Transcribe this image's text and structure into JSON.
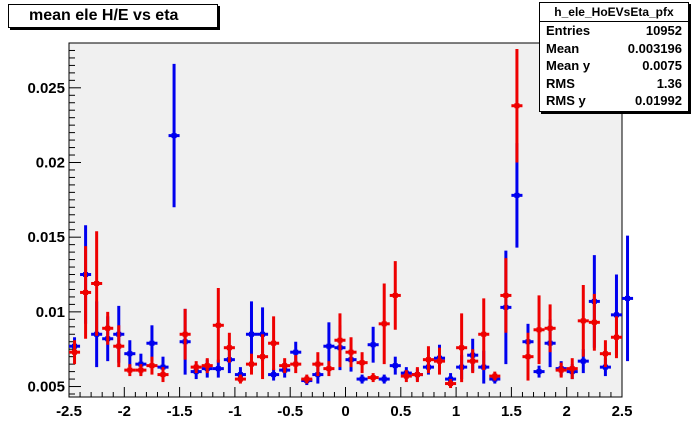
{
  "chart_data": {
    "type": "scatter",
    "title": "mean ele H/E vs eta",
    "xlim": [
      -2.5,
      2.5
    ],
    "ylim": [
      0.0043,
      0.028
    ],
    "x_ticks": [
      "-2.5",
      "-2",
      "-1.5",
      "-1",
      "-0.5",
      "0",
      "0.5",
      "1",
      "1.5",
      "2",
      "2.5"
    ],
    "y_ticks": [
      "0.005",
      "0.01",
      "0.015",
      "0.02",
      "0.025"
    ],
    "grid": false,
    "colors": {
      "blue": "#0000ee",
      "red": "#ee0000"
    },
    "series": [
      {
        "color": "blue",
        "points": [
          {
            "x": -2.45,
            "y": 0.0077,
            "err": 0.0006
          },
          {
            "x": -2.35,
            "y": 0.0125,
            "err": 0.0033
          },
          {
            "x": -2.25,
            "y": 0.0085,
            "err": 0.0022
          },
          {
            "x": -2.15,
            "y": 0.0082,
            "err": 0.0015
          },
          {
            "x": -2.05,
            "y": 0.0085,
            "err": 0.0019
          },
          {
            "x": -1.95,
            "y": 0.0072,
            "err": 0.0009
          },
          {
            "x": -1.85,
            "y": 0.0065,
            "err": 0.0007
          },
          {
            "x": -1.75,
            "y": 0.0079,
            "err": 0.0012
          },
          {
            "x": -1.65,
            "y": 0.0063,
            "err": 0.0007
          },
          {
            "x": -1.55,
            "y": 0.0218,
            "err": 0.0048
          },
          {
            "x": -1.45,
            "y": 0.008,
            "err": 0.0022
          },
          {
            "x": -1.35,
            "y": 0.006,
            "err": 0.0005
          },
          {
            "x": -1.25,
            "y": 0.0062,
            "err": 0.0006
          },
          {
            "x": -1.15,
            "y": 0.0062,
            "err": 0.0006
          },
          {
            "x": -1.05,
            "y": 0.0068,
            "err": 0.0009
          },
          {
            "x": -0.95,
            "y": 0.0058,
            "err": 0.0005
          },
          {
            "x": -0.85,
            "y": 0.0085,
            "err": 0.0022
          },
          {
            "x": -0.75,
            "y": 0.0085,
            "err": 0.0018
          },
          {
            "x": -0.65,
            "y": 0.0058,
            "err": 0.0004
          },
          {
            "x": -0.55,
            "y": 0.0061,
            "err": 0.0005
          },
          {
            "x": -0.45,
            "y": 0.0073,
            "err": 0.0007
          },
          {
            "x": -0.35,
            "y": 0.0054,
            "err": 0.0003
          },
          {
            "x": -0.25,
            "y": 0.0058,
            "err": 0.0006
          },
          {
            "x": -0.15,
            "y": 0.0077,
            "err": 0.0016
          },
          {
            "x": -0.05,
            "y": 0.0076,
            "err": 0.0015
          },
          {
            "x": 0.05,
            "y": 0.0068,
            "err": 0.0008
          },
          {
            "x": 0.15,
            "y": 0.0055,
            "err": 0.0003
          },
          {
            "x": 0.25,
            "y": 0.0078,
            "err": 0.0012
          },
          {
            "x": 0.35,
            "y": 0.0055,
            "err": 0.0003
          },
          {
            "x": 0.45,
            "y": 0.0064,
            "err": 0.0006
          },
          {
            "x": 0.55,
            "y": 0.0059,
            "err": 0.0004
          },
          {
            "x": 0.65,
            "y": 0.0058,
            "err": 0.0004
          },
          {
            "x": 0.75,
            "y": 0.0063,
            "err": 0.0005
          },
          {
            "x": 0.85,
            "y": 0.0069,
            "err": 0.0009
          },
          {
            "x": 0.95,
            "y": 0.0055,
            "err": 0.0004
          },
          {
            "x": 1.05,
            "y": 0.0063,
            "err": 0.0008
          },
          {
            "x": 1.15,
            "y": 0.0071,
            "err": 0.0011
          },
          {
            "x": 1.25,
            "y": 0.0063,
            "err": 0.0011
          },
          {
            "x": 1.35,
            "y": 0.0055,
            "err": 0.0003
          },
          {
            "x": 1.45,
            "y": 0.0103,
            "err": 0.0038
          },
          {
            "x": 1.55,
            "y": 0.0178,
            "err": 0.0035
          },
          {
            "x": 1.65,
            "y": 0.008,
            "err": 0.0012
          },
          {
            "x": 1.75,
            "y": 0.006,
            "err": 0.0004
          },
          {
            "x": 1.85,
            "y": 0.0079,
            "err": 0.0016
          },
          {
            "x": 1.95,
            "y": 0.0062,
            "err": 0.0005
          },
          {
            "x": 2.05,
            "y": 0.006,
            "err": 0.0005
          },
          {
            "x": 2.15,
            "y": 0.0067,
            "err": 0.0008
          },
          {
            "x": 2.25,
            "y": 0.0107,
            "err": 0.0031
          },
          {
            "x": 2.35,
            "y": 0.0063,
            "err": 0.0006
          },
          {
            "x": 2.45,
            "y": 0.0098,
            "err": 0.0027
          },
          {
            "x": 2.55,
            "y": 0.0109,
            "err": 0.0042
          }
        ]
      },
      {
        "color": "red",
        "points": [
          {
            "x": -2.45,
            "y": 0.0073,
            "err": 0.0008
          },
          {
            "x": -2.35,
            "y": 0.0113,
            "err": 0.0031
          },
          {
            "x": -2.25,
            "y": 0.0119,
            "err": 0.0035
          },
          {
            "x": -2.15,
            "y": 0.0089,
            "err": 0.0011
          },
          {
            "x": -2.05,
            "y": 0.0077,
            "err": 0.0014
          },
          {
            "x": -1.95,
            "y": 0.0061,
            "err": 0.0004
          },
          {
            "x": -1.85,
            "y": 0.0061,
            "err": 0.0004
          },
          {
            "x": -1.75,
            "y": 0.0064,
            "err": 0.0006
          },
          {
            "x": -1.65,
            "y": 0.0058,
            "err": 0.0005
          },
          {
            "x": -1.45,
            "y": 0.0085,
            "err": 0.0017
          },
          {
            "x": -1.35,
            "y": 0.0063,
            "err": 0.0004
          },
          {
            "x": -1.25,
            "y": 0.0064,
            "err": 0.0005
          },
          {
            "x": -1.15,
            "y": 0.0091,
            "err": 0.0025
          },
          {
            "x": -1.05,
            "y": 0.0076,
            "err": 0.001
          },
          {
            "x": -0.95,
            "y": 0.0055,
            "err": 0.0003
          },
          {
            "x": -0.85,
            "y": 0.0065,
            "err": 0.0007
          },
          {
            "x": -0.75,
            "y": 0.007,
            "err": 0.0015
          },
          {
            "x": -0.65,
            "y": 0.0079,
            "err": 0.0018
          },
          {
            "x": -0.55,
            "y": 0.0064,
            "err": 0.0005
          },
          {
            "x": -0.45,
            "y": 0.0065,
            "err": 0.0006
          },
          {
            "x": -0.35,
            "y": 0.0055,
            "err": 0.0003
          },
          {
            "x": -0.25,
            "y": 0.0065,
            "err": 0.0008
          },
          {
            "x": -0.15,
            "y": 0.0062,
            "err": 0.0005
          },
          {
            "x": -0.05,
            "y": 0.0081,
            "err": 0.0018
          },
          {
            "x": 0.05,
            "y": 0.0073,
            "err": 0.001
          },
          {
            "x": 0.15,
            "y": 0.0066,
            "err": 0.0007
          },
          {
            "x": 0.25,
            "y": 0.0056,
            "err": 0.0003
          },
          {
            "x": 0.35,
            "y": 0.0092,
            "err": 0.0027
          },
          {
            "x": 0.45,
            "y": 0.0111,
            "err": 0.0023
          },
          {
            "x": 0.55,
            "y": 0.0057,
            "err": 0.0004
          },
          {
            "x": 0.65,
            "y": 0.0058,
            "err": 0.0005
          },
          {
            "x": 0.75,
            "y": 0.0068,
            "err": 0.0009
          },
          {
            "x": 0.85,
            "y": 0.0067,
            "err": 0.0009
          },
          {
            "x": 0.95,
            "y": 0.0052,
            "err": 0.0003
          },
          {
            "x": 1.05,
            "y": 0.0076,
            "err": 0.0023
          },
          {
            "x": 1.15,
            "y": 0.0067,
            "err": 0.0008
          },
          {
            "x": 1.25,
            "y": 0.0085,
            "err": 0.0024
          },
          {
            "x": 1.35,
            "y": 0.0057,
            "err": 0.0003
          },
          {
            "x": 1.45,
            "y": 0.0111,
            "err": 0.0025
          },
          {
            "x": 1.55,
            "y": 0.0238,
            "err": 0.0038
          },
          {
            "x": 1.65,
            "y": 0.007,
            "err": 0.0016
          },
          {
            "x": 1.75,
            "y": 0.0088,
            "err": 0.0023
          },
          {
            "x": 1.85,
            "y": 0.0089,
            "err": 0.0016
          },
          {
            "x": 1.95,
            "y": 0.0061,
            "err": 0.0005
          },
          {
            "x": 2.05,
            "y": 0.0062,
            "err": 0.0007
          },
          {
            "x": 2.15,
            "y": 0.0094,
            "err": 0.0024
          },
          {
            "x": 2.25,
            "y": 0.0093,
            "err": 0.0019
          },
          {
            "x": 2.35,
            "y": 0.0072,
            "err": 0.0009
          },
          {
            "x": 2.45,
            "y": 0.0083,
            "err": 0.0014
          }
        ]
      }
    ]
  },
  "stats": {
    "name": "h_ele_HoEVsEta_pfx",
    "rows": [
      {
        "label": "Entries",
        "value": "10952"
      },
      {
        "label": "Mean",
        "value": "0.003196"
      },
      {
        "label": "Mean y",
        "value": "0.0075"
      },
      {
        "label": "RMS",
        "value": "1.36"
      },
      {
        "label": "RMS y",
        "value": "0.01992"
      }
    ]
  }
}
